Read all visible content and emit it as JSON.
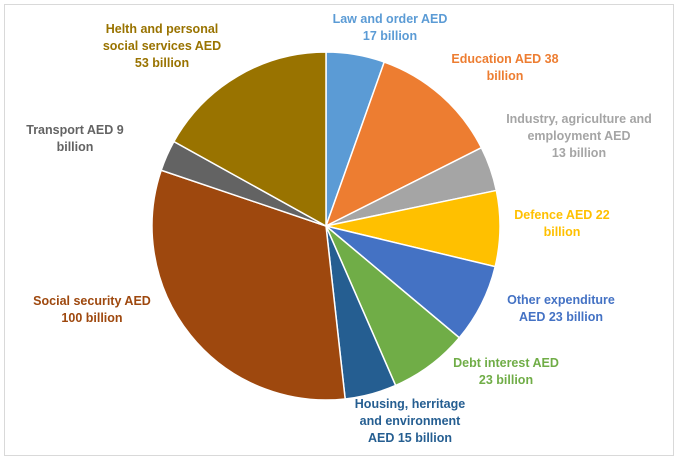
{
  "chart_data": {
    "type": "pie",
    "title": "",
    "start_angle_deg": 0,
    "direction": "clockwise",
    "legend": "none",
    "slices": [
      {
        "label_lines": [
          "Law and order AED",
          "17 billion"
        ],
        "value": 17,
        "color": "#5b9bd5",
        "label_color": "#5b9bd5"
      },
      {
        "label_lines": [
          "Education AED 38",
          "billion"
        ],
        "value": 38,
        "color": "#ed7d31",
        "label_color": "#ed7d31"
      },
      {
        "label_lines": [
          "Industry, agriculture and",
          "employment AED",
          "13 billion"
        ],
        "value": 13,
        "color": "#a5a5a5",
        "label_color": "#a5a5a5"
      },
      {
        "label_lines": [
          "Defence AED 22",
          "billion"
        ],
        "value": 22,
        "color": "#ffc000",
        "label_color": "#ffc000"
      },
      {
        "label_lines": [
          "Other expenditure",
          "AED 23 billion"
        ],
        "value": 23,
        "color": "#4472c4",
        "label_color": "#4472c4"
      },
      {
        "label_lines": [
          "Debt interest AED",
          "23 billion"
        ],
        "value": 23,
        "color": "#70ad47",
        "label_color": "#70ad47"
      },
      {
        "label_lines": [
          "Housing, herritage",
          "and environment",
          "AED 15 billion"
        ],
        "value": 15,
        "color": "#255e91",
        "label_color": "#255e91"
      },
      {
        "label_lines": [
          "Social security AED",
          "100 billion"
        ],
        "value": 100,
        "color": "#9e480e",
        "label_color": "#9e480e"
      },
      {
        "label_lines": [
          "Transport AED 9",
          "billion"
        ],
        "value": 9,
        "color": "#636363",
        "label_color": "#636363"
      },
      {
        "label_lines": [
          "Helth and personal",
          "social services AED",
          "53 billion"
        ],
        "value": 53,
        "color": "#997300",
        "label_color": "#997300"
      }
    ]
  }
}
